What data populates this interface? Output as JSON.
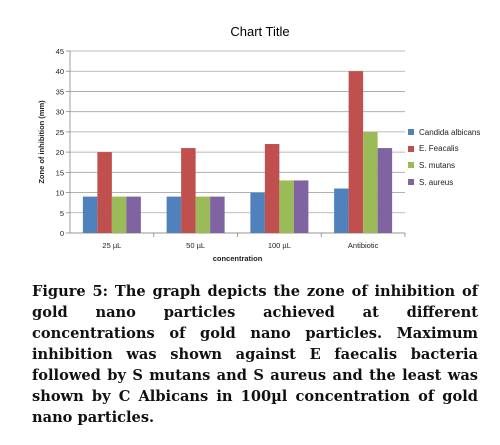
{
  "chart_data": {
    "type": "bar",
    "title": "Chart Title",
    "xlabel": "concentration",
    "ylabel": "Zone of inhibition (mm)",
    "ylim": [
      0,
      45
    ],
    "yticks": [
      0,
      5,
      10,
      15,
      20,
      25,
      30,
      35,
      40,
      45
    ],
    "categories": [
      "25 µL",
      "50 µL",
      "100 µL",
      "Antibiotic"
    ],
    "grid": true,
    "legend_position": "right",
    "series": [
      {
        "name": "Candida albicans",
        "color": "#4F81BD",
        "values": [
          9,
          9,
          10,
          11
        ]
      },
      {
        "name": "E. Feacalis",
        "color": "#C0504D",
        "values": [
          20,
          21,
          22,
          40
        ]
      },
      {
        "name": "S. mutans",
        "color": "#9BBB59",
        "values": [
          9,
          9,
          13,
          25
        ]
      },
      {
        "name": "S. aureus",
        "color": "#8064A2",
        "values": [
          9,
          9,
          13,
          21
        ]
      }
    ]
  },
  "caption": "Figure 5: The graph depicts the zone of inhibition of gold nano particles achieved at different concentrations of gold nano particles. Maximum inhibition was shown against E faecalis bacteria followed by S mutans and S aureus and the least was shown by C Albicans in 100µl concentration of gold nano particles."
}
